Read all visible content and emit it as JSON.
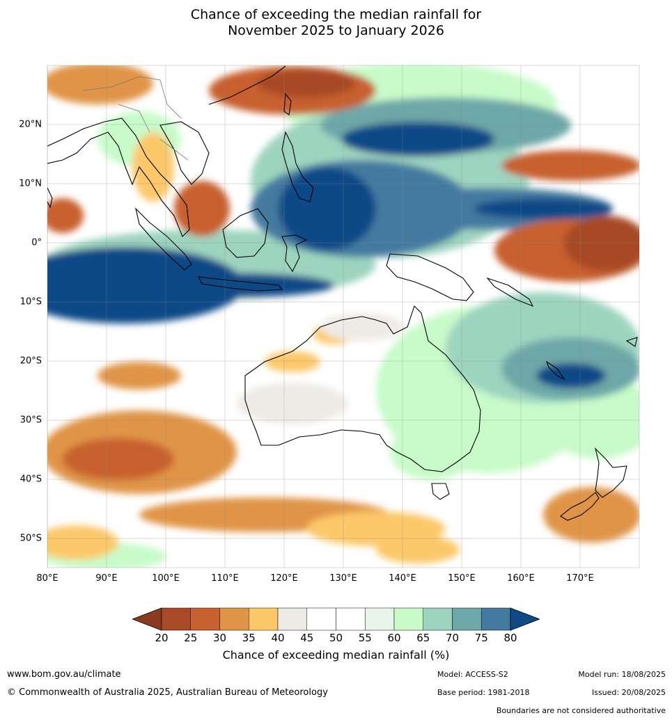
{
  "title_line1": "Chance of exceeding the median rainfall for",
  "title_line2": "November 2025 to January 2026",
  "map": {
    "lat_labels": [
      "20°N",
      "10°N",
      "0°",
      "10°S",
      "20°S",
      "30°S",
      "40°S",
      "50°S"
    ],
    "lon_labels": [
      "80°E",
      "90°E",
      "100°E",
      "110°E",
      "120°E",
      "130°E",
      "140°E",
      "150°E",
      "160°E",
      "170°E"
    ]
  },
  "legend": {
    "ticks": [
      "20",
      "25",
      "30",
      "35",
      "40",
      "45",
      "50",
      "55",
      "60",
      "65",
      "70",
      "75",
      "80"
    ],
    "colors": [
      "#8c3a1f",
      "#a84a25",
      "#c7612f",
      "#e09447",
      "#fcc86a",
      "#eeebe6",
      "#ffffff",
      "#ffffff",
      "#e8f5e8",
      "#c8fbc9",
      "#9dd4bf",
      "#6ea7a8",
      "#447aa0",
      "#0f4a87"
    ],
    "title": "Chance of exceeding median rainfall (%)"
  },
  "footer": {
    "website": "www.bom.gov.au/climate",
    "copyright": "© Commonwealth of Australia 2025, Australian Bureau of Meteorology",
    "model": "Model: ACCESS-S2",
    "model_run": "Model run: 18/08/2025",
    "base_period": "Base period: 1981-2018",
    "issued": "Issued: 20/08/2025",
    "disclaimer": "Boundaries are not considered authoritative"
  }
}
